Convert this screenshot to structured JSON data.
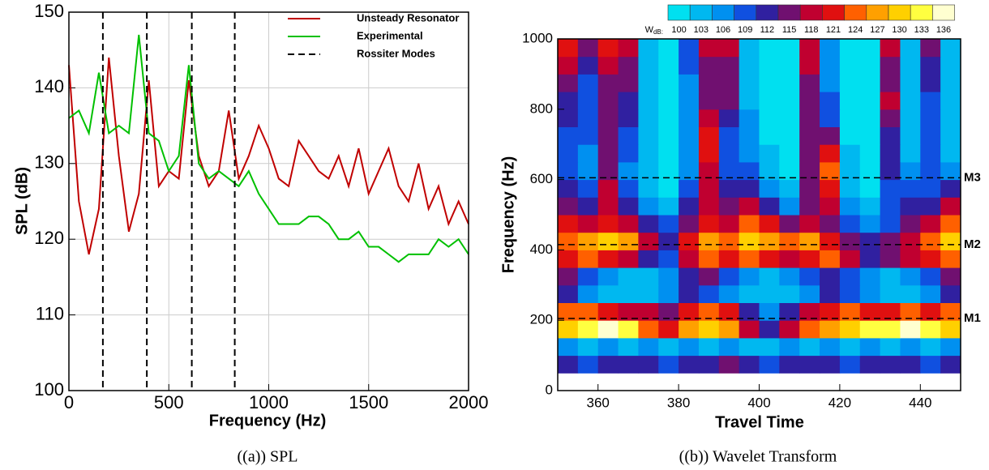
{
  "chart_data": [
    {
      "type": "line",
      "xlabel": "Frequency (Hz)",
      "ylabel": "SPL (dB)",
      "xlim": [
        0,
        2000
      ],
      "ylim": [
        100,
        150
      ],
      "xticks": [
        0,
        500,
        1000,
        1500,
        2000
      ],
      "yticks": [
        100,
        110,
        120,
        130,
        140,
        150
      ],
      "grid": true,
      "legend": "upper right",
      "series": [
        {
          "name": "Unsteady Resonator",
          "color": "#c00000",
          "x": [
            0,
            50,
            100,
            150,
            200,
            250,
            300,
            350,
            400,
            450,
            500,
            550,
            600,
            650,
            700,
            750,
            800,
            850,
            900,
            950,
            1000,
            1050,
            1100,
            1150,
            1200,
            1250,
            1300,
            1350,
            1400,
            1450,
            1500,
            1550,
            1600,
            1650,
            1700,
            1750,
            1800,
            1850,
            1900,
            1950,
            2000
          ],
          "values": [
            143,
            125,
            118,
            124,
            144,
            131,
            121,
            126,
            141,
            127,
            129,
            128,
            141,
            131,
            127,
            129,
            137,
            128,
            131,
            135,
            132,
            128,
            127,
            133,
            131,
            129,
            128,
            131,
            127,
            132,
            126,
            129,
            132,
            127,
            125,
            130,
            124,
            127,
            122,
            125,
            122
          ]
        },
        {
          "name": "Experimental",
          "color": "#00c000",
          "x": [
            0,
            50,
            100,
            150,
            200,
            250,
            300,
            350,
            400,
            450,
            500,
            550,
            600,
            650,
            700,
            750,
            800,
            850,
            900,
            950,
            1000,
            1050,
            1100,
            1150,
            1200,
            1250,
            1300,
            1350,
            1400,
            1450,
            1500,
            1550,
            1600,
            1650,
            1700,
            1750,
            1800,
            1850,
            1900,
            1950,
            2000
          ],
          "values": [
            136,
            137,
            134,
            142,
            134,
            135,
            134,
            147,
            134,
            133,
            129,
            131,
            143,
            130,
            128,
            129,
            128,
            127,
            129,
            126,
            124,
            122,
            122,
            122,
            123,
            123,
            122,
            120,
            120,
            121,
            119,
            119,
            118,
            117,
            118,
            118,
            118,
            120,
            119,
            120,
            118
          ]
        }
      ],
      "vlines": {
        "name": "Rossiter Modes",
        "color": "#000000",
        "x": [
          170,
          390,
          615,
          830
        ]
      }
    },
    {
      "type": "contour",
      "xlabel": "Travel Time",
      "ylabel": "Frequency (Hz)",
      "xlim": [
        350,
        450
      ],
      "ylim": [
        0,
        1000
      ],
      "xticks": [
        360,
        380,
        400,
        420,
        440
      ],
      "yticks": [
        0,
        200,
        400,
        600,
        800,
        1000
      ],
      "x": [
        352.5,
        357.5,
        362.5,
        367.5,
        372.5,
        377.5,
        382.5,
        387.5,
        392.5,
        397.5,
        402.5,
        407.5,
        412.5,
        417.5,
        422.5,
        427.5,
        432.5,
        437.5,
        442.5,
        447.5
      ],
      "y": [
        75,
        125,
        175,
        225,
        275,
        325,
        375,
        425,
        475,
        525,
        575,
        625,
        675,
        725,
        775,
        825,
        875,
        925,
        975
      ],
      "z": [
        [
          112,
          110,
          112,
          114,
          112,
          110,
          112,
          114,
          116,
          112,
          110,
          112,
          114,
          112,
          110,
          112,
          114,
          112,
          110,
          112
        ],
        [
          106,
          104,
          106,
          104,
          106,
          104,
          106,
          104,
          106,
          104,
          104,
          106,
          104,
          106,
          104,
          106,
          104,
          106,
          104,
          106
        ],
        [
          130,
          134,
          136,
          133,
          124,
          122,
          127,
          130,
          128,
          118,
          112,
          118,
          124,
          127,
          130,
          133,
          134,
          136,
          134,
          130
        ],
        [
          124,
          124,
          121,
          120,
          118,
          115,
          121,
          124,
          122,
          112,
          106,
          112,
          118,
          121,
          124,
          121,
          121,
          124,
          121,
          124
        ],
        [
          112,
          106,
          103,
          103,
          103,
          106,
          112,
          109,
          106,
          103,
          103,
          103,
          106,
          112,
          109,
          106,
          103,
          103,
          106,
          112
        ],
        [
          115,
          109,
          106,
          103,
          103,
          106,
          112,
          115,
          109,
          106,
          103,
          106,
          109,
          112,
          109,
          106,
          103,
          106,
          109,
          115
        ],
        [
          121,
          124,
          121,
          118,
          112,
          109,
          118,
          124,
          121,
          124,
          121,
          118,
          121,
          124,
          118,
          112,
          115,
          118,
          121,
          124
        ],
        [
          124,
          127,
          130,
          127,
          118,
          112,
          121,
          127,
          124,
          130,
          127,
          124,
          127,
          121,
          115,
          112,
          115,
          118,
          124,
          130
        ],
        [
          121,
          118,
          121,
          118,
          112,
          109,
          115,
          121,
          118,
          124,
          121,
          115,
          118,
          115,
          109,
          106,
          109,
          115,
          118,
          124
        ],
        [
          115,
          112,
          118,
          112,
          106,
          103,
          112,
          118,
          115,
          118,
          112,
          106,
          115,
          118,
          106,
          103,
          109,
          112,
          112,
          118
        ],
        [
          112,
          109,
          118,
          109,
          103,
          100,
          109,
          118,
          112,
          112,
          106,
          103,
          115,
          121,
          103,
          100,
          109,
          109,
          109,
          112
        ],
        [
          109,
          106,
          115,
          106,
          103,
          100,
          106,
          118,
          109,
          109,
          103,
          100,
          115,
          124,
          103,
          100,
          112,
          106,
          109,
          106
        ],
        [
          109,
          106,
          115,
          109,
          103,
          100,
          106,
          121,
          109,
          106,
          103,
          100,
          115,
          121,
          103,
          100,
          112,
          103,
          109,
          103
        ],
        [
          109,
          109,
          115,
          109,
          103,
          100,
          106,
          121,
          109,
          106,
          100,
          100,
          115,
          115,
          100,
          100,
          112,
          103,
          109,
          103
        ],
        [
          112,
          109,
          115,
          112,
          103,
          100,
          106,
          118,
          112,
          106,
          100,
          100,
          115,
          109,
          100,
          100,
          115,
          103,
          109,
          103
        ],
        [
          112,
          109,
          115,
          112,
          103,
          100,
          106,
          115,
          115,
          103,
          100,
          100,
          115,
          109,
          100,
          100,
          118,
          103,
          109,
          103
        ],
        [
          115,
          109,
          115,
          115,
          103,
          100,
          106,
          115,
          115,
          103,
          100,
          100,
          115,
          106,
          100,
          100,
          115,
          103,
          112,
          103
        ],
        [
          118,
          112,
          118,
          115,
          103,
          100,
          109,
          115,
          115,
          103,
          100,
          100,
          118,
          106,
          100,
          100,
          115,
          103,
          112,
          103
        ],
        [
          121,
          115,
          121,
          118,
          103,
          100,
          109,
          118,
          118,
          103,
          100,
          100,
          118,
          106,
          100,
          100,
          118,
          103,
          115,
          103
        ]
      ],
      "levels": [
        100,
        103,
        106,
        109,
        112,
        115,
        118,
        121,
        124,
        127,
        130,
        133,
        136
      ],
      "colors": [
        "#00e0f0",
        "#00b8f0",
        "#0090f0",
        "#1050e0",
        "#3020a0",
        "#701070",
        "#c00030",
        "#e01010",
        "#ff6000",
        "#ffa000",
        "#ffd000",
        "#ffff40",
        "#ffffd0"
      ],
      "colorbar_label": {
        "main": "W",
        "sub": "dB:"
      },
      "hlines": {
        "color": "#000000",
        "y": [
          205,
          415,
          605
        ],
        "labels": [
          "M1",
          "M2",
          "M3"
        ]
      }
    }
  ],
  "captions": [
    "((a)) SPL",
    "((b)) Wavelet Transform"
  ]
}
